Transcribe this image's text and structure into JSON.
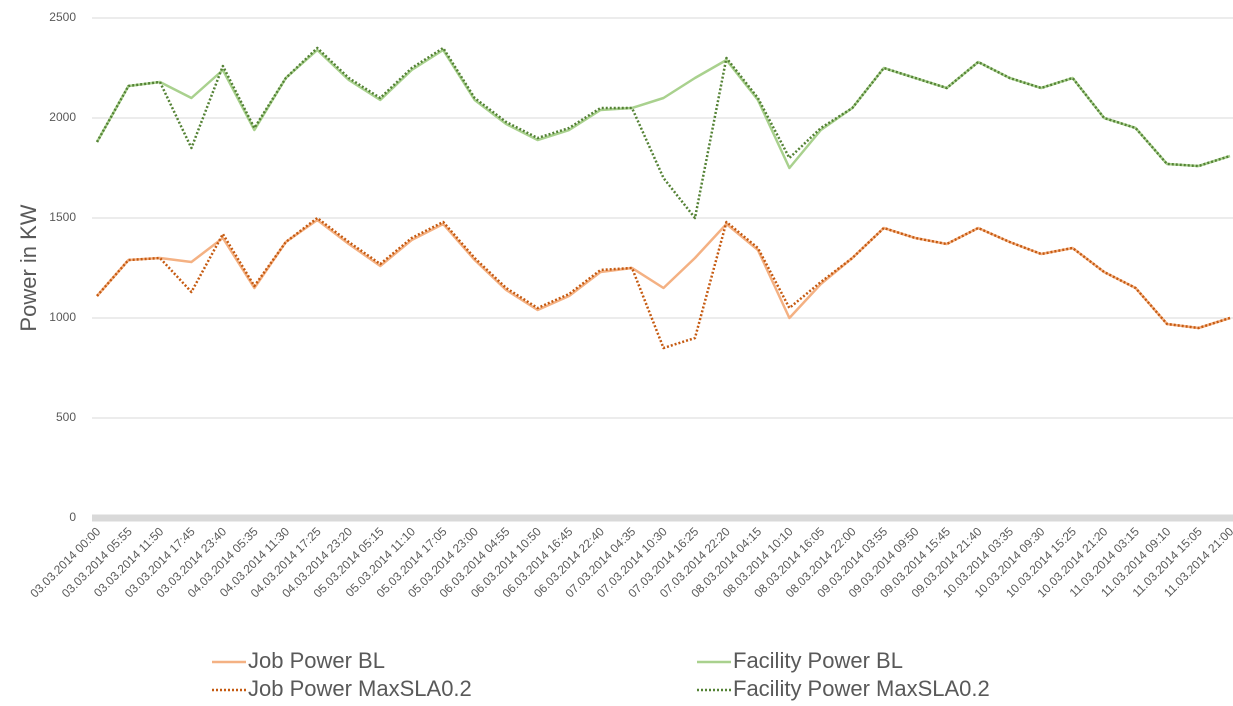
{
  "chart_data": {
    "type": "line",
    "ylabel": "Power in KW",
    "categories": [
      "03.03.2014 00:00",
      "03.03.2014 05:55",
      "03.03.2014 11:50",
      "03.03.2014 17:45",
      "03.03.2014 23:40",
      "04.03.2014 05:35",
      "04.03.2014 11:30",
      "04.03.2014 17:25",
      "04.03.2014 23:20",
      "05.03.2014 05:15",
      "05.03.2014 11:10",
      "05.03.2014 17:05",
      "05.03.2014 23:00",
      "06.03.2014 04:55",
      "06.03.2014 10:50",
      "06.03.2014 16:45",
      "06.03.2014 22:40",
      "07.03.2014 04:35",
      "07.03.2014 10:30",
      "07.03.2014 16:25",
      "07.03.2014 22:20",
      "08.03.2014 04:15",
      "08.03.2014 10:10",
      "08.03.2014 16:05",
      "08.03.2014 22:00",
      "09.03.2014 03:55",
      "09.03.2014 09:50",
      "09.03.2014 15:45",
      "09.03.2014 21:40",
      "10.03.2014 03:35",
      "10.03.2014 09:30",
      "10.03.2014 15:25",
      "10.03.2014 21:20",
      "11.03.2014 03:15",
      "11.03.2014 09:10",
      "11.03.2014 15:05",
      "11.03.2014 21:00"
    ],
    "series": [
      {
        "name": "Job Power BL",
        "color": "#f4b183",
        "dash": "solid",
        "values": [
          1110,
          1290,
          1300,
          1280,
          1400,
          1150,
          1380,
          1490,
          1370,
          1260,
          1390,
          1470,
          1290,
          1140,
          1040,
          1110,
          1230,
          1250,
          1150,
          1300,
          1470,
          1340,
          1000,
          1170,
          1300,
          1450,
          1400,
          1370,
          1450,
          1380,
          1320,
          1350,
          1230,
          1150,
          970,
          950,
          1000
        ]
      },
      {
        "name": "Job Power MaxSLA0.2",
        "color": "#c55a11",
        "dash": "dotted",
        "values": [
          1110,
          1290,
          1300,
          1130,
          1420,
          1160,
          1380,
          1500,
          1380,
          1270,
          1400,
          1480,
          1300,
          1150,
          1050,
          1120,
          1240,
          1250,
          850,
          900,
          1480,
          1350,
          1050,
          1180,
          1300,
          1450,
          1400,
          1370,
          1450,
          1380,
          1320,
          1350,
          1230,
          1150,
          970,
          950,
          1000
        ]
      },
      {
        "name": "Facility Power BL",
        "color": "#a9d18e",
        "dash": "solid",
        "values": [
          1880,
          2160,
          2180,
          2100,
          2240,
          1940,
          2200,
          2340,
          2190,
          2090,
          2240,
          2340,
          2090,
          1970,
          1890,
          1940,
          2040,
          2050,
          2100,
          2200,
          2290,
          2090,
          1750,
          1940,
          2050,
          2250,
          2200,
          2150,
          2280,
          2200,
          2150,
          2200,
          2000,
          1950,
          1770,
          1760,
          1810
        ]
      },
      {
        "name": "Facility Power MaxSLA0.2",
        "color": "#548235",
        "dash": "dotted",
        "values": [
          1880,
          2160,
          2180,
          1850,
          2260,
          1950,
          2200,
          2350,
          2200,
          2100,
          2250,
          2350,
          2100,
          1980,
          1900,
          1950,
          2050,
          2050,
          1700,
          1500,
          2300,
          2100,
          1800,
          1950,
          2050,
          2250,
          2200,
          2150,
          2280,
          2200,
          2150,
          2200,
          2000,
          1950,
          1770,
          1760,
          1810
        ]
      }
    ],
    "ylim": [
      0,
      2500
    ],
    "yticks": [
      0,
      500,
      1000,
      1500,
      2000,
      2500
    ],
    "grid": true,
    "legend": "bottom"
  }
}
